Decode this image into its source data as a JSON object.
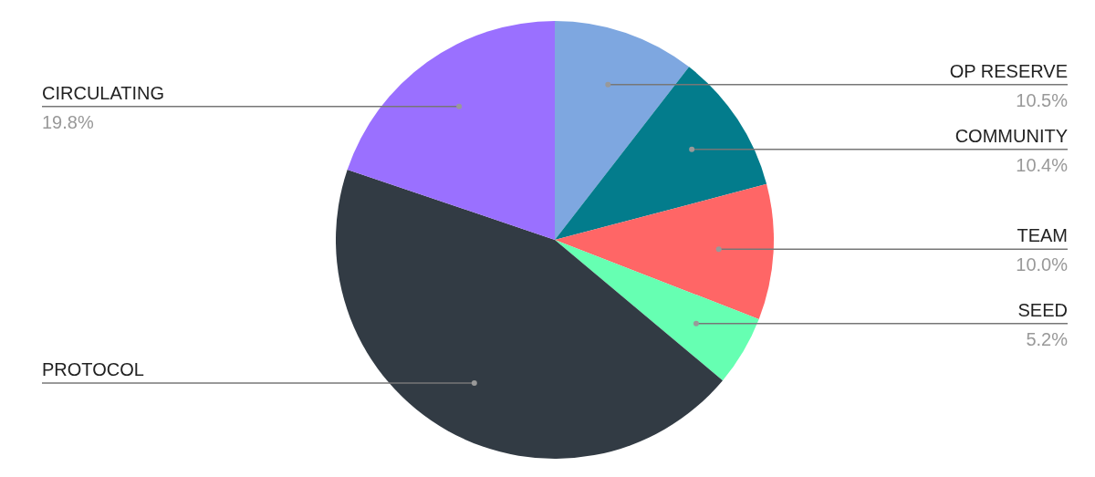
{
  "chart_data": {
    "type": "pie",
    "categories": [
      "OP RESERVE",
      "COMMUNITY",
      "TEAM",
      "SEED",
      "PROTOCOL",
      "CIRCULATING"
    ],
    "values": [
      10.5,
      10.4,
      10.0,
      5.2,
      44.1,
      19.8
    ],
    "colors": [
      "#7ea7e0",
      "#037c8c",
      "#ff6666",
      "#66ffb2",
      "#323b44",
      "#9a70ff"
    ],
    "value_labels": [
      "10.5%",
      "10.4%",
      "10.0%",
      "5.2%",
      null,
      "19.8%"
    ]
  }
}
